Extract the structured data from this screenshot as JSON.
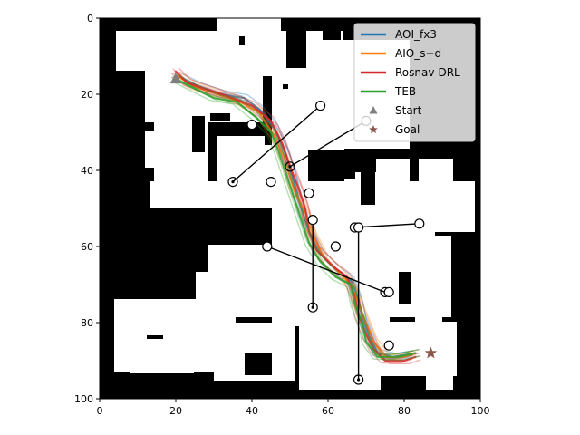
{
  "chart_data": {
    "type": "line",
    "title": "",
    "xlabel": "",
    "ylabel": "",
    "xlim": [
      0,
      100
    ],
    "ylim": [
      100,
      0
    ],
    "y_inverted": true,
    "grid": false,
    "legend_position": "top-right",
    "xticks": [
      "0",
      "20",
      "40",
      "60",
      "80",
      "100"
    ],
    "yticks": [
      "0",
      "20",
      "40",
      "60",
      "80",
      "100"
    ],
    "series": [
      {
        "name": "AOI_fx3",
        "color": "#1f77b4",
        "points": [
          [
            20,
            15
          ],
          [
            26,
            18
          ],
          [
            32,
            20
          ],
          [
            38,
            21
          ],
          [
            42,
            24
          ],
          [
            46,
            29
          ],
          [
            49,
            36
          ],
          [
            51,
            43
          ],
          [
            53,
            50
          ],
          [
            55,
            56
          ],
          [
            58,
            62
          ],
          [
            62,
            66
          ],
          [
            66,
            69
          ],
          [
            68,
            74
          ],
          [
            69,
            79
          ],
          [
            71,
            84
          ],
          [
            73,
            88
          ],
          [
            77,
            89
          ],
          [
            83,
            88
          ]
        ]
      },
      {
        "name": "AIO_s+d",
        "color": "#ff7f0e",
        "points": [
          [
            20,
            15
          ],
          [
            25,
            18
          ],
          [
            31,
            20
          ],
          [
            37,
            22
          ],
          [
            42,
            25
          ],
          [
            46,
            31
          ],
          [
            49,
            38
          ],
          [
            51,
            45
          ],
          [
            54,
            51
          ],
          [
            56,
            57
          ],
          [
            59,
            63
          ],
          [
            63,
            67
          ],
          [
            66,
            70
          ],
          [
            68,
            75
          ],
          [
            70,
            80
          ],
          [
            72,
            85
          ],
          [
            75,
            89
          ],
          [
            79,
            89
          ],
          [
            83,
            88
          ]
        ]
      },
      {
        "name": "Rosnav-DRL",
        "color": "#d62728",
        "points": [
          [
            20,
            14
          ],
          [
            23,
            17
          ],
          [
            29,
            19
          ],
          [
            35,
            21
          ],
          [
            40,
            23
          ],
          [
            45,
            27
          ],
          [
            48,
            33
          ],
          [
            50,
            39
          ],
          [
            52,
            44
          ],
          [
            54,
            50
          ],
          [
            55,
            56
          ],
          [
            57,
            61
          ],
          [
            61,
            65
          ],
          [
            65,
            68
          ],
          [
            67,
            73
          ],
          [
            68,
            78
          ],
          [
            70,
            83
          ],
          [
            72,
            87
          ],
          [
            75,
            90
          ],
          [
            80,
            90
          ],
          [
            83,
            89
          ]
        ]
      },
      {
        "name": "TEB",
        "color": "#2ca02c",
        "points": [
          [
            20,
            16
          ],
          [
            24,
            18
          ],
          [
            30,
            21
          ],
          [
            36,
            22
          ],
          [
            41,
            26
          ],
          [
            45,
            30
          ],
          [
            47,
            35
          ],
          [
            49,
            41
          ],
          [
            51,
            47
          ],
          [
            53,
            53
          ],
          [
            55,
            59
          ],
          [
            58,
            64
          ],
          [
            62,
            68
          ],
          [
            66,
            70
          ],
          [
            67,
            75
          ],
          [
            69,
            80
          ],
          [
            70,
            85
          ],
          [
            73,
            89
          ],
          [
            78,
            89
          ],
          [
            83,
            88
          ]
        ]
      }
    ],
    "markers": [
      {
        "name": "Start",
        "shape": "triangle",
        "color": "#7f7f7f",
        "x": 20,
        "y": 16
      },
      {
        "name": "Goal",
        "shape": "star",
        "color": "#8c564b",
        "x": 87,
        "y": 88
      }
    ],
    "obstacles": [
      {
        "from": [
          58,
          23
        ],
        "to": [
          35,
          43
        ]
      },
      {
        "from": [
          40,
          28
        ],
        "to": [
          40,
          28
        ]
      },
      {
        "from": [
          70,
          27
        ],
        "to": [
          50,
          39
        ]
      },
      {
        "from": [
          45,
          43
        ],
        "to": [
          45,
          43
        ]
      },
      {
        "from": [
          55,
          46
        ],
        "to": [
          55,
          46
        ]
      },
      {
        "from": [
          56,
          53
        ],
        "to": [
          56,
          76
        ]
      },
      {
        "from": [
          84,
          54
        ],
        "to": [
          67,
          55
        ]
      },
      {
        "from": [
          68,
          55
        ],
        "to": [
          68,
          95
        ]
      },
      {
        "from": [
          62,
          60
        ],
        "to": [
          62,
          60
        ]
      },
      {
        "from": [
          44,
          60
        ],
        "to": [
          75,
          72
        ]
      },
      {
        "from": [
          76,
          72
        ],
        "to": [
          76,
          72
        ]
      },
      {
        "from": [
          76,
          86
        ],
        "to": [
          76,
          86
        ]
      }
    ]
  }
}
